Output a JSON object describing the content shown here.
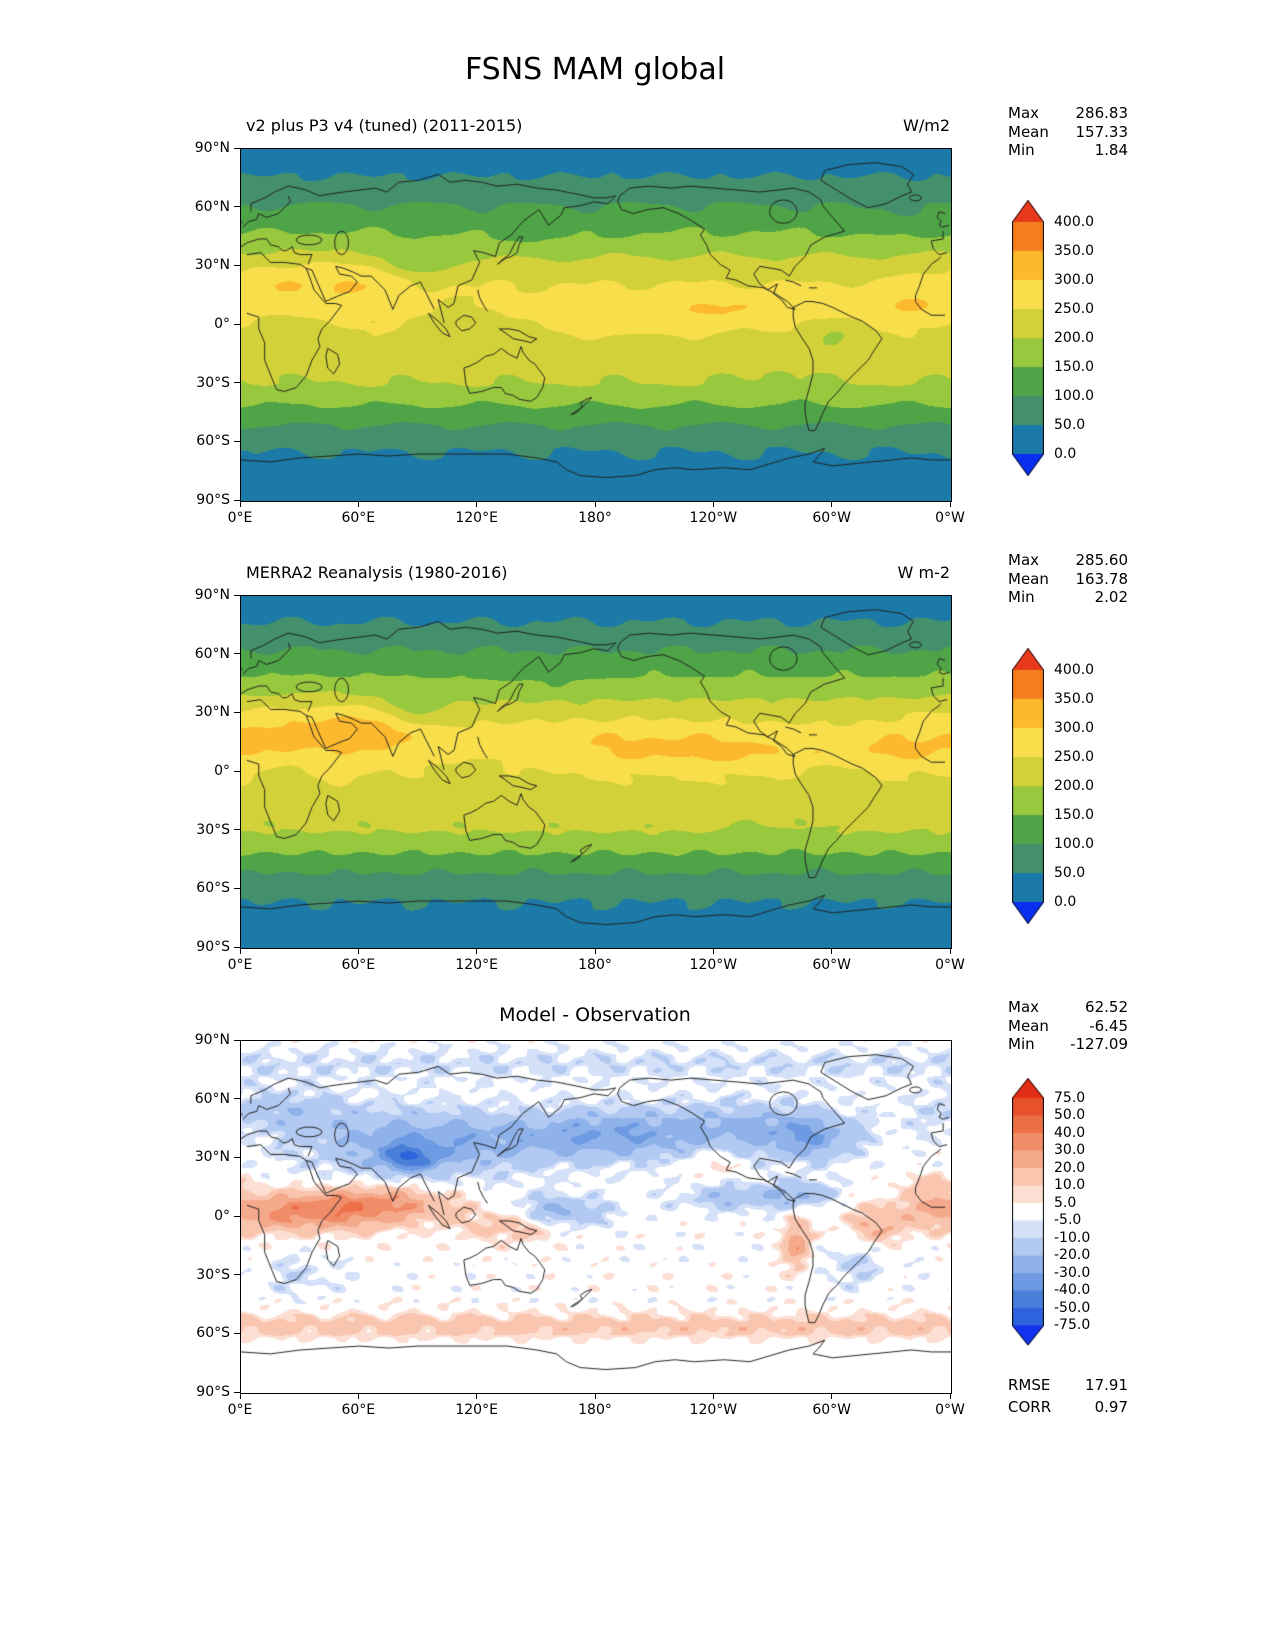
{
  "figure": {
    "title": "FSNS MAM global"
  },
  "axis": {
    "yticks": [
      "90°N",
      "60°N",
      "30°N",
      "0°",
      "30°S",
      "60°S",
      "90°S"
    ],
    "xticks": [
      "0°E",
      "60°E",
      "120°E",
      "180°",
      "120°W",
      "60°W",
      "0°W"
    ]
  },
  "panels": [
    {
      "title": "v2 plus P3 v4 (tuned) (2011-2015)",
      "units": "W/m2",
      "stats": [
        {
          "label": "Max",
          "value": "286.83"
        },
        {
          "label": "Mean",
          "value": "157.33"
        },
        {
          "label": "Min",
          "value": "1.84"
        }
      ]
    },
    {
      "title": "MERRA2 Reanalysis (1980-2016)",
      "units": "W m-2",
      "stats": [
        {
          "label": "Max",
          "value": "285.60"
        },
        {
          "label": "Mean",
          "value": "163.78"
        },
        {
          "label": "Min",
          "value": "2.02"
        }
      ]
    },
    {
      "title": "Model - Observation",
      "units": "",
      "stats": [
        {
          "label": "Max",
          "value": "62.52"
        },
        {
          "label": "Mean",
          "value": "-6.45"
        },
        {
          "label": "Min",
          "value": "-127.09"
        }
      ],
      "footer_stats": [
        {
          "label": "RMSE",
          "value": "17.91"
        },
        {
          "label": "CORR",
          "value": "0.97"
        }
      ]
    }
  ],
  "colorbars": [
    {
      "levels": [
        0,
        50,
        100,
        150,
        200,
        250,
        300,
        350,
        400
      ],
      "labels_top_to_bottom": [
        "400.0",
        "350.0",
        "300.0",
        "250.0",
        "200.0",
        "150.0",
        "100.0",
        "50.0",
        "0.0"
      ],
      "colors_low_to_high": [
        "#0a2ff1",
        "#1b7aa8",
        "#44906c",
        "#4fa447",
        "#97c83d",
        "#d3d139",
        "#f7de4a",
        "#fdb92d",
        "#f57e20",
        "#e8391d"
      ]
    },
    {
      "levels": [
        -75,
        -50,
        -40,
        -30,
        -20,
        -10,
        -5,
        5,
        10,
        20,
        30,
        40,
        50,
        75
      ],
      "labels_top_to_bottom": [
        "75.0",
        "50.0",
        "40.0",
        "30.0",
        "20.0",
        "10.0",
        "5.0",
        "-5.0",
        "-10.0",
        "-20.0",
        "-30.0",
        "-40.0",
        "-50.0",
        "-75.0"
      ],
      "colors_low_to_high": [
        "#1433f0",
        "#2e63dd",
        "#4a7fd9",
        "#6d9ae2",
        "#8fb2ea",
        "#b2c9f1",
        "#d5e1f8",
        "#ffffff",
        "#fcded2",
        "#f9c5ae",
        "#f5a98b",
        "#f18c68",
        "#ed6f47",
        "#e8512c",
        "#e32c15"
      ]
    }
  ],
  "chart_data": {
    "type": "heatmap",
    "subtype": "filled-contour-global-maps",
    "projection": "equirectangular",
    "lon_range": [
      0,
      360
    ],
    "lat_range": [
      -90,
      90
    ],
    "variable": "FSNS",
    "season": "MAM",
    "region": "global",
    "panels": [
      {
        "title": "v2 plus P3 v4 (tuned) (2011-2015)",
        "units": "W/m2",
        "max": 286.83,
        "mean": 157.33,
        "min": 1.84,
        "colorbar": 0,
        "contour_levels": [
          0,
          50,
          100,
          150,
          200,
          250,
          300,
          350,
          400
        ],
        "zonal": {
          "lats": [
            90,
            80,
            70,
            60,
            50,
            40,
            30,
            20,
            10,
            0,
            -10,
            -20,
            -30,
            -40,
            -50,
            -60,
            -70,
            -80,
            -90
          ],
          "values": [
            28,
            38,
            70,
            105,
            140,
            180,
            222,
            250,
            258,
            248,
            235,
            222,
            200,
            155,
            105,
            62,
            40,
            32,
            30
          ]
        },
        "features": [
          [
            25,
            20,
            30,
            10,
            45,
            "north-africa-arabia-high"
          ],
          [
            55,
            25,
            12,
            8,
            30,
            "arabia-high"
          ],
          [
            75,
            20,
            10,
            6,
            25,
            "india-high"
          ],
          [
            255,
            8,
            45,
            6,
            40,
            "east-pacific-itcz-high"
          ],
          [
            195,
            2,
            30,
            5,
            28,
            "central-pacific-high"
          ],
          [
            332,
            10,
            18,
            6,
            30,
            "tropical-atlantic-high"
          ],
          [
            90,
            32,
            12,
            6,
            -55,
            "tibet-low"
          ],
          [
            300,
            -4,
            12,
            8,
            -42,
            "amazon-low"
          ],
          [
            22,
            -2,
            10,
            7,
            -35,
            "congo-low"
          ],
          [
            118,
            -2,
            16,
            8,
            -28,
            "maritime-continent-low"
          ],
          [
            150,
            45,
            25,
            8,
            -18,
            "northwest-pacific-low"
          ],
          [
            330,
            52,
            20,
            7,
            -15,
            "north-atlantic-low"
          ],
          [
            270,
            -25,
            15,
            8,
            -15,
            "southeast-pacific-low"
          ],
          [
            10,
            -22,
            10,
            6,
            -12,
            "namibia-low"
          ]
        ]
      },
      {
        "title": "MERRA2 Reanalysis (1980-2016)",
        "units": "W m-2",
        "max": 285.6,
        "mean": 163.78,
        "min": 2.02,
        "colorbar": 0,
        "contour_levels": [
          0,
          50,
          100,
          150,
          200,
          250,
          300,
          350,
          400
        ],
        "zonal": {
          "lats": [
            90,
            80,
            70,
            60,
            50,
            40,
            30,
            20,
            10,
            0,
            -10,
            -20,
            -30,
            -40,
            -50,
            -60,
            -70,
            -80,
            -90
          ],
          "values": [
            30,
            40,
            72,
            108,
            145,
            188,
            230,
            258,
            262,
            250,
            238,
            225,
            202,
            158,
            108,
            64,
            42,
            34,
            32
          ]
        },
        "features": [
          [
            25,
            20,
            32,
            11,
            55,
            "north-africa-arabia-high"
          ],
          [
            55,
            25,
            14,
            8,
            35,
            "arabia-high"
          ],
          [
            75,
            20,
            12,
            7,
            35,
            "india-high"
          ],
          [
            195,
            15,
            50,
            8,
            35,
            "north-pacific-subtropic-high"
          ],
          [
            255,
            10,
            45,
            6,
            35,
            "east-pacific-itcz-high"
          ],
          [
            332,
            12,
            18,
            6,
            30,
            "tropical-atlantic-high"
          ],
          [
            90,
            32,
            12,
            6,
            -40,
            "tibet-low"
          ],
          [
            300,
            -4,
            12,
            8,
            -30,
            "amazon-low"
          ],
          [
            22,
            -2,
            10,
            7,
            -25,
            "congo-low"
          ],
          [
            118,
            -2,
            16,
            8,
            -22,
            "maritime-continent-low"
          ],
          [
            150,
            45,
            25,
            8,
            -12,
            "northwest-pacific-low"
          ],
          [
            270,
            -25,
            15,
            8,
            -12,
            "southeast-pacific-low"
          ]
        ]
      },
      {
        "title": "Model - Observation",
        "units": "W/m2",
        "max": 62.52,
        "mean": -6.45,
        "min": -127.09,
        "rmse": 17.91,
        "corr": 0.97,
        "colorbar": 1,
        "polar_fade": true,
        "contour_levels": [
          -75,
          -50,
          -40,
          -30,
          -20,
          -10,
          -5,
          5,
          10,
          20,
          30,
          40,
          50,
          75
        ],
        "zonal": {
          "lats": [
            90,
            -90
          ],
          "values": [
            0,
            0
          ]
        },
        "features": [
          [
            30,
            2,
            40,
            7,
            32,
            "equatorial-africa-indian-positive"
          ],
          [
            70,
            8,
            25,
            6,
            22,
            "arabian-sea-positive"
          ],
          [
            140,
            -4,
            18,
            6,
            20,
            "new-guinea-positive"
          ],
          [
            282,
            -14,
            5,
            9,
            28,
            "peru-coast-positive"
          ],
          [
            322,
            -6,
            10,
            6,
            16,
            "northeast-brazil-positive"
          ],
          [
            350,
            15,
            10,
            6,
            14,
            "west-africa-coast-positive"
          ],
          [
            180,
            -56,
            900,
            5,
            14,
            "southern-ocean-positive-band"
          ],
          [
            95,
            38,
            45,
            12,
            -28,
            "central-asia-negative"
          ],
          [
            85,
            30,
            10,
            5,
            -30,
            "himalaya-negative"
          ],
          [
            185,
            42,
            30,
            9,
            -24,
            "north-pacific-negative"
          ],
          [
            255,
            45,
            35,
            10,
            -22,
            "north-america-negative"
          ],
          [
            290,
            40,
            15,
            8,
            -20,
            "northwest-atlantic-negative"
          ],
          [
            20,
            55,
            25,
            8,
            -14,
            "europe-negative"
          ],
          [
            160,
            2,
            18,
            6,
            -26,
            "west-pacific-equatorial-negative"
          ],
          [
            250,
            10,
            20,
            5,
            -18,
            "east-pacific-negative"
          ],
          [
            285,
            12,
            12,
            5,
            -20,
            "caribbean-negative"
          ],
          [
            180,
            78,
            900,
            6,
            -8,
            "arctic-negative-band"
          ],
          [
            240,
            28,
            8,
            5,
            12,
            "mexico-positive"
          ],
          [
            310,
            -25,
            12,
            8,
            -10,
            "south-brazil-negative"
          ],
          [
            30,
            -30,
            15,
            8,
            -8,
            "south-africa-negative"
          ]
        ]
      }
    ]
  }
}
